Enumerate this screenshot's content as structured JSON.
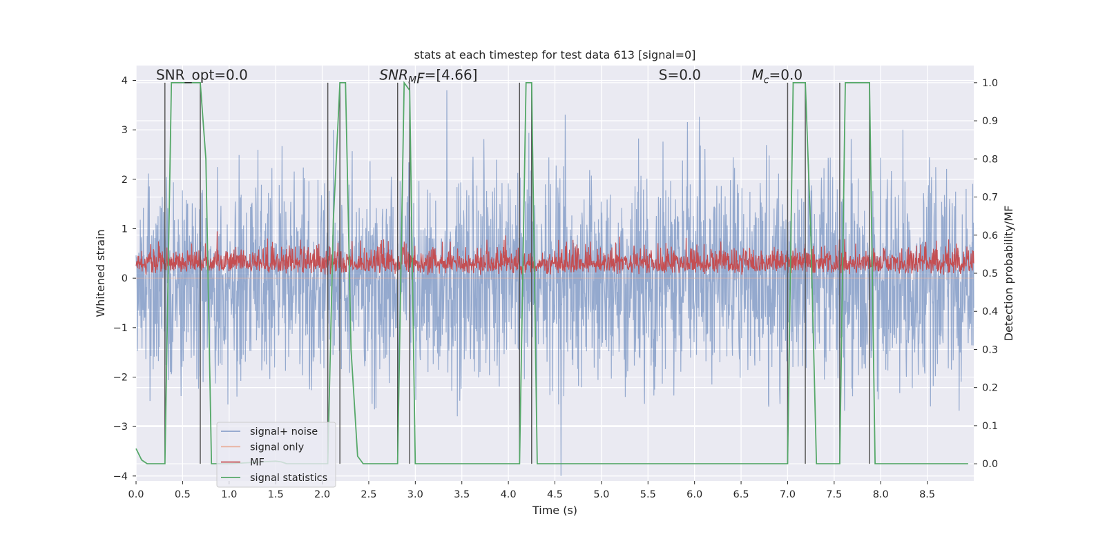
{
  "chart_data": {
    "type": "line",
    "title": "stats at each timestep for test data 613 [signal=0]",
    "xlabel": "Time (s)",
    "ylabel": "Whitened strain",
    "ylabel_right": "Detection probability/MF",
    "xlim": [
      0.0,
      9.0
    ],
    "ylim": [
      -4.1,
      4.3
    ],
    "ylim_right": [
      -0.045,
      1.045
    ],
    "x_ticks": [
      0.0,
      0.5,
      1.0,
      1.5,
      2.0,
      2.5,
      3.0,
      3.5,
      4.0,
      4.5,
      5.0,
      5.5,
      6.0,
      6.5,
      7.0,
      7.5,
      8.0,
      8.5
    ],
    "x_tick_labels": [
      "0.0",
      "0.5",
      "1.0",
      "1.5",
      "2.0",
      "2.5",
      "3.0",
      "3.5",
      "4.0",
      "4.5",
      "5.0",
      "5.5",
      "6.0",
      "6.5",
      "7.0",
      "7.5",
      "8.0",
      "8.5"
    ],
    "y_ticks": [
      -4,
      -3,
      -2,
      -1,
      0,
      1,
      2,
      3,
      4
    ],
    "y_tick_labels": [
      "−4",
      "−3",
      "−2",
      "−1",
      "0",
      "1",
      "2",
      "3",
      "4"
    ],
    "y_right_ticks": [
      0.0,
      0.1,
      0.2,
      0.3,
      0.4,
      0.5,
      0.6,
      0.7,
      0.8,
      0.9,
      1.0
    ],
    "y_right_tick_labels": [
      "0.0",
      "0.1",
      "0.2",
      "0.3",
      "0.4",
      "0.5",
      "0.6",
      "0.7",
      "0.8",
      "0.9",
      "1.0"
    ],
    "grid": true,
    "legend_position": "lower-left",
    "annotations": [
      {
        "x": 0.2,
        "y": 4.0,
        "text": "SNR_opt=0.0"
      },
      {
        "x": 2.6,
        "y": 4.0,
        "text": "SNR_MF=[4.66]"
      },
      {
        "x": 5.6,
        "y": 4.0,
        "text": "S=0.0"
      },
      {
        "x": 6.6,
        "y": 4.0,
        "text": "M_c=0.0"
      }
    ],
    "series": [
      {
        "name": "signal+ noise",
        "color": "#4c72b0",
        "kind": "noise",
        "sample_rate_hz": 1024,
        "amplitude_sd": 1.0,
        "range": [
          -4.0,
          4.0
        ]
      },
      {
        "name": "signal only",
        "color": "#e8a48a",
        "kind": "flat",
        "value": 0.0
      },
      {
        "name": "MF",
        "color": "#c44e52",
        "kind": "noise",
        "axis": "right",
        "baseline": 0.5,
        "range": [
          0.495,
          0.61
        ]
      },
      {
        "name": "signal statistics",
        "color": "#55a868",
        "axis": "right",
        "x": [
          0.0,
          0.06,
          0.12,
          0.31,
          0.38,
          0.69,
          0.75,
          0.81,
          1.0,
          1.5,
          1.56,
          1.62,
          2.06,
          2.12,
          2.19,
          2.25,
          2.31,
          2.38,
          2.44,
          2.81,
          2.88,
          2.94,
          3.0,
          4.12,
          4.19,
          4.25,
          4.31,
          4.38,
          7.0,
          7.06,
          7.19,
          7.25,
          7.31,
          7.56,
          7.62,
          7.88,
          7.94,
          8.94
        ],
        "y": [
          0.04,
          0.01,
          0.0,
          0.0,
          1.0,
          1.0,
          0.8,
          0.0,
          0.0,
          0.007,
          0.005,
          0.0,
          0.0,
          0.64,
          1.0,
          1.0,
          0.3,
          0.02,
          0.0,
          0.0,
          1.0,
          0.98,
          0.0,
          0.0,
          1.0,
          1.0,
          0.0,
          0.0,
          0.0,
          1.0,
          1.0,
          0.6,
          0.0,
          0.0,
          1.0,
          1.0,
          0.0,
          0.0
        ]
      }
    ],
    "vertical_lines": {
      "color": "#555555",
      "x": [
        0.31,
        0.69,
        2.06,
        2.19,
        2.81,
        2.94,
        4.12,
        4.25,
        7.0,
        7.19,
        7.56,
        7.88
      ],
      "y_range_right": [
        0.0,
        1.0
      ]
    }
  }
}
